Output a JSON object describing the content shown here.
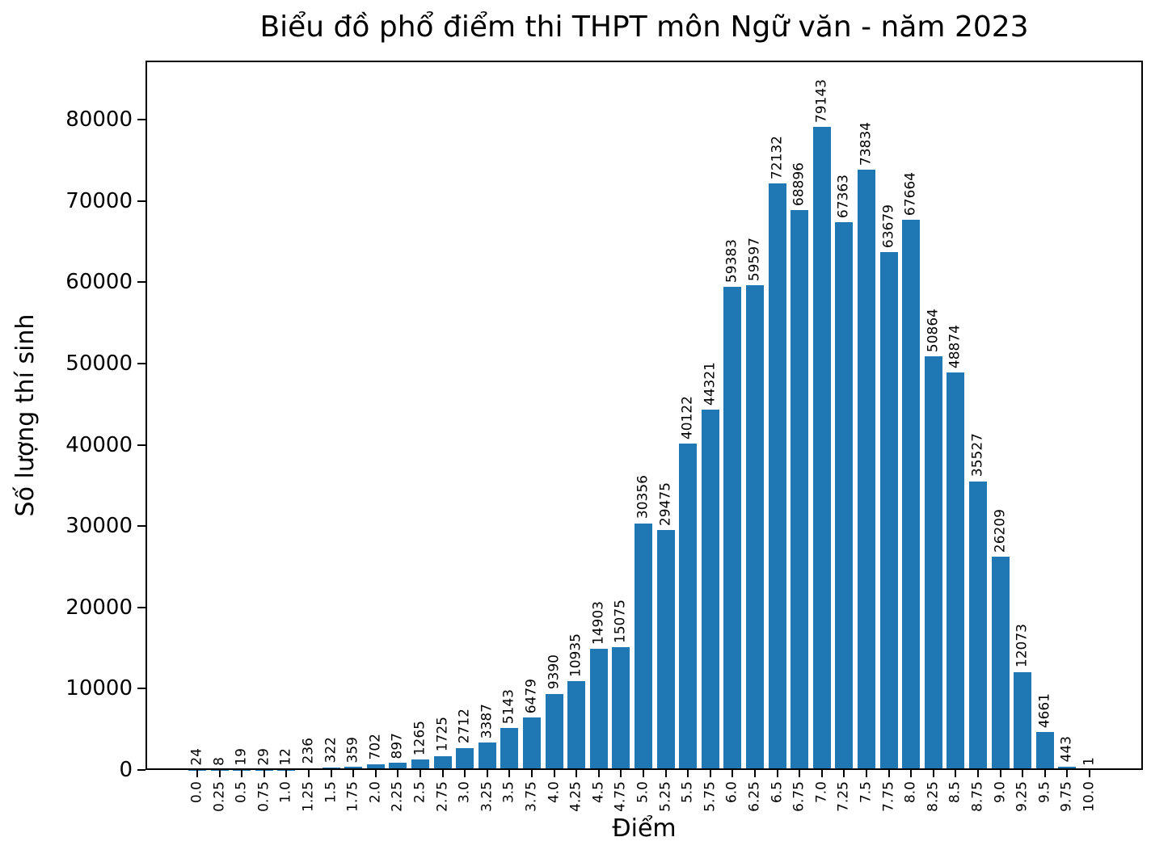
{
  "chart_data": {
    "type": "bar",
    "title": "Biểu đồ phổ điểm thi THPT môn Ngữ văn - năm 2023",
    "xlabel": "Điểm",
    "ylabel": "Số lượng thí sinh",
    "categories": [
      "0.0",
      "0.25",
      "0.5",
      "0.75",
      "1.0",
      "1.25",
      "1.5",
      "1.75",
      "2.0",
      "2.25",
      "2.5",
      "2.75",
      "3.0",
      "3.25",
      "3.5",
      "3.75",
      "4.0",
      "4.25",
      "4.5",
      "4.75",
      "5.0",
      "5.25",
      "5.5",
      "5.75",
      "6.0",
      "6.25",
      "6.5",
      "6.75",
      "7.0",
      "7.25",
      "7.5",
      "7.75",
      "8.0",
      "8.25",
      "8.5",
      "8.75",
      "9.0",
      "9.25",
      "9.5",
      "9.75",
      "10.0"
    ],
    "values": [
      24,
      8,
      19,
      29,
      12,
      236,
      322,
      359,
      702,
      897,
      1265,
      1725,
      2712,
      3387,
      5143,
      6479,
      9390,
      10935,
      14903,
      15075,
      30356,
      29475,
      40122,
      44321,
      59383,
      59597,
      72132,
      68896,
      79143,
      67363,
      73834,
      63679,
      67664,
      50864,
      48874,
      35527,
      26209,
      12073,
      4661,
      443,
      1
    ],
    "yticks": [
      0,
      10000,
      20000,
      30000,
      40000,
      50000,
      60000,
      70000,
      80000
    ],
    "ylim": [
      0,
      87255
    ],
    "bar_color": "#1f77b4",
    "text_color": "#000000",
    "grid": false,
    "legend": "none",
    "value_labels": true,
    "value_label_rotation": 90,
    "x_tick_rotation": 90
  }
}
